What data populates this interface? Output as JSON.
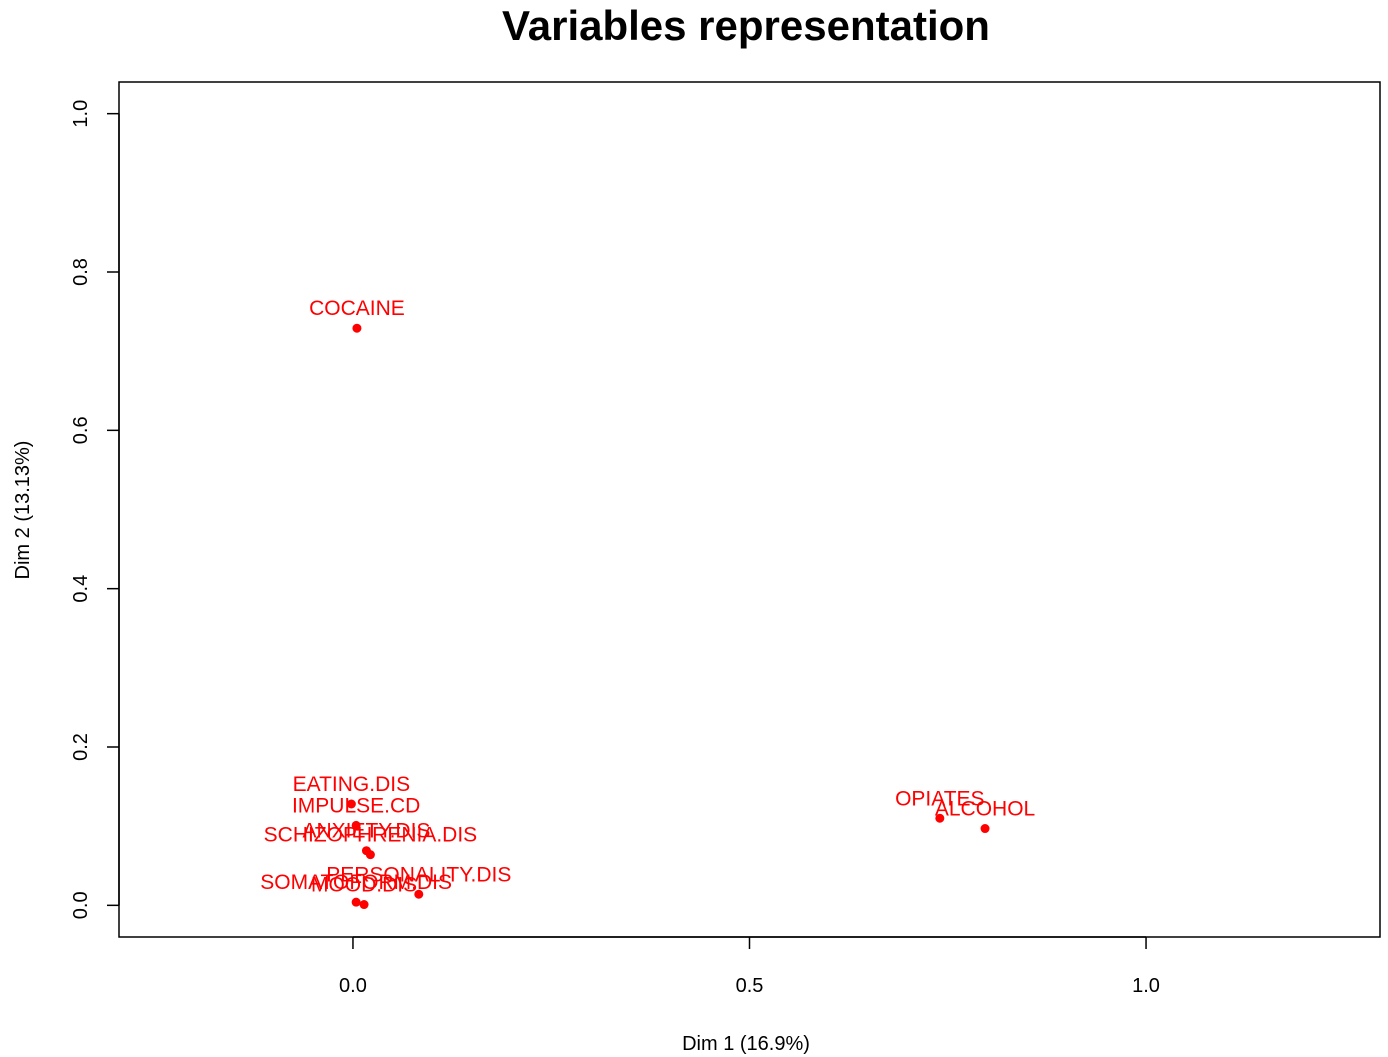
{
  "chart_data": {
    "type": "scatter",
    "title": "Variables representation",
    "xlabel": "Dim 1 (16.9%)",
    "ylabel": "Dim 2 (13.13%)",
    "xlim": [
      -0.295,
      1.295
    ],
    "ylim": [
      -0.04,
      1.04
    ],
    "xticks": [
      0.0,
      0.5,
      1.0
    ],
    "xtick_labels": [
      "0.0",
      "0.5",
      "1.0"
    ],
    "yticks": [
      0.0,
      0.2,
      0.4,
      0.6,
      0.8,
      1.0
    ],
    "ytick_labels": [
      "0.0",
      "0.2",
      "0.4",
      "0.6",
      "0.8",
      "1.0"
    ],
    "grid": false,
    "color": "#ff0000",
    "points": [
      {
        "label": "COCAINE",
        "x": 0.005,
        "y": 0.729
      },
      {
        "label": "EATING.DIS",
        "x": -0.002,
        "y": 0.128
      },
      {
        "label": "IMPULSE.CD",
        "x": 0.004,
        "y": 0.101
      },
      {
        "label": "ANXIETY.DIS",
        "x": 0.017,
        "y": 0.069
      },
      {
        "label": "SCHIZOPHRENIA.DIS",
        "x": 0.022,
        "y": 0.064
      },
      {
        "label": "PERSONALITY.DIS",
        "x": 0.083,
        "y": 0.014
      },
      {
        "label": "MOOD.DIS",
        "x": 0.014,
        "y": 0.001
      },
      {
        "label": "SOMATOFORM.DIS",
        "x": 0.004,
        "y": 0.004
      },
      {
        "label": "OPIATES",
        "x": 0.74,
        "y": 0.11
      },
      {
        "label": "ALCOHOL",
        "x": 0.797,
        "y": 0.097
      }
    ]
  }
}
